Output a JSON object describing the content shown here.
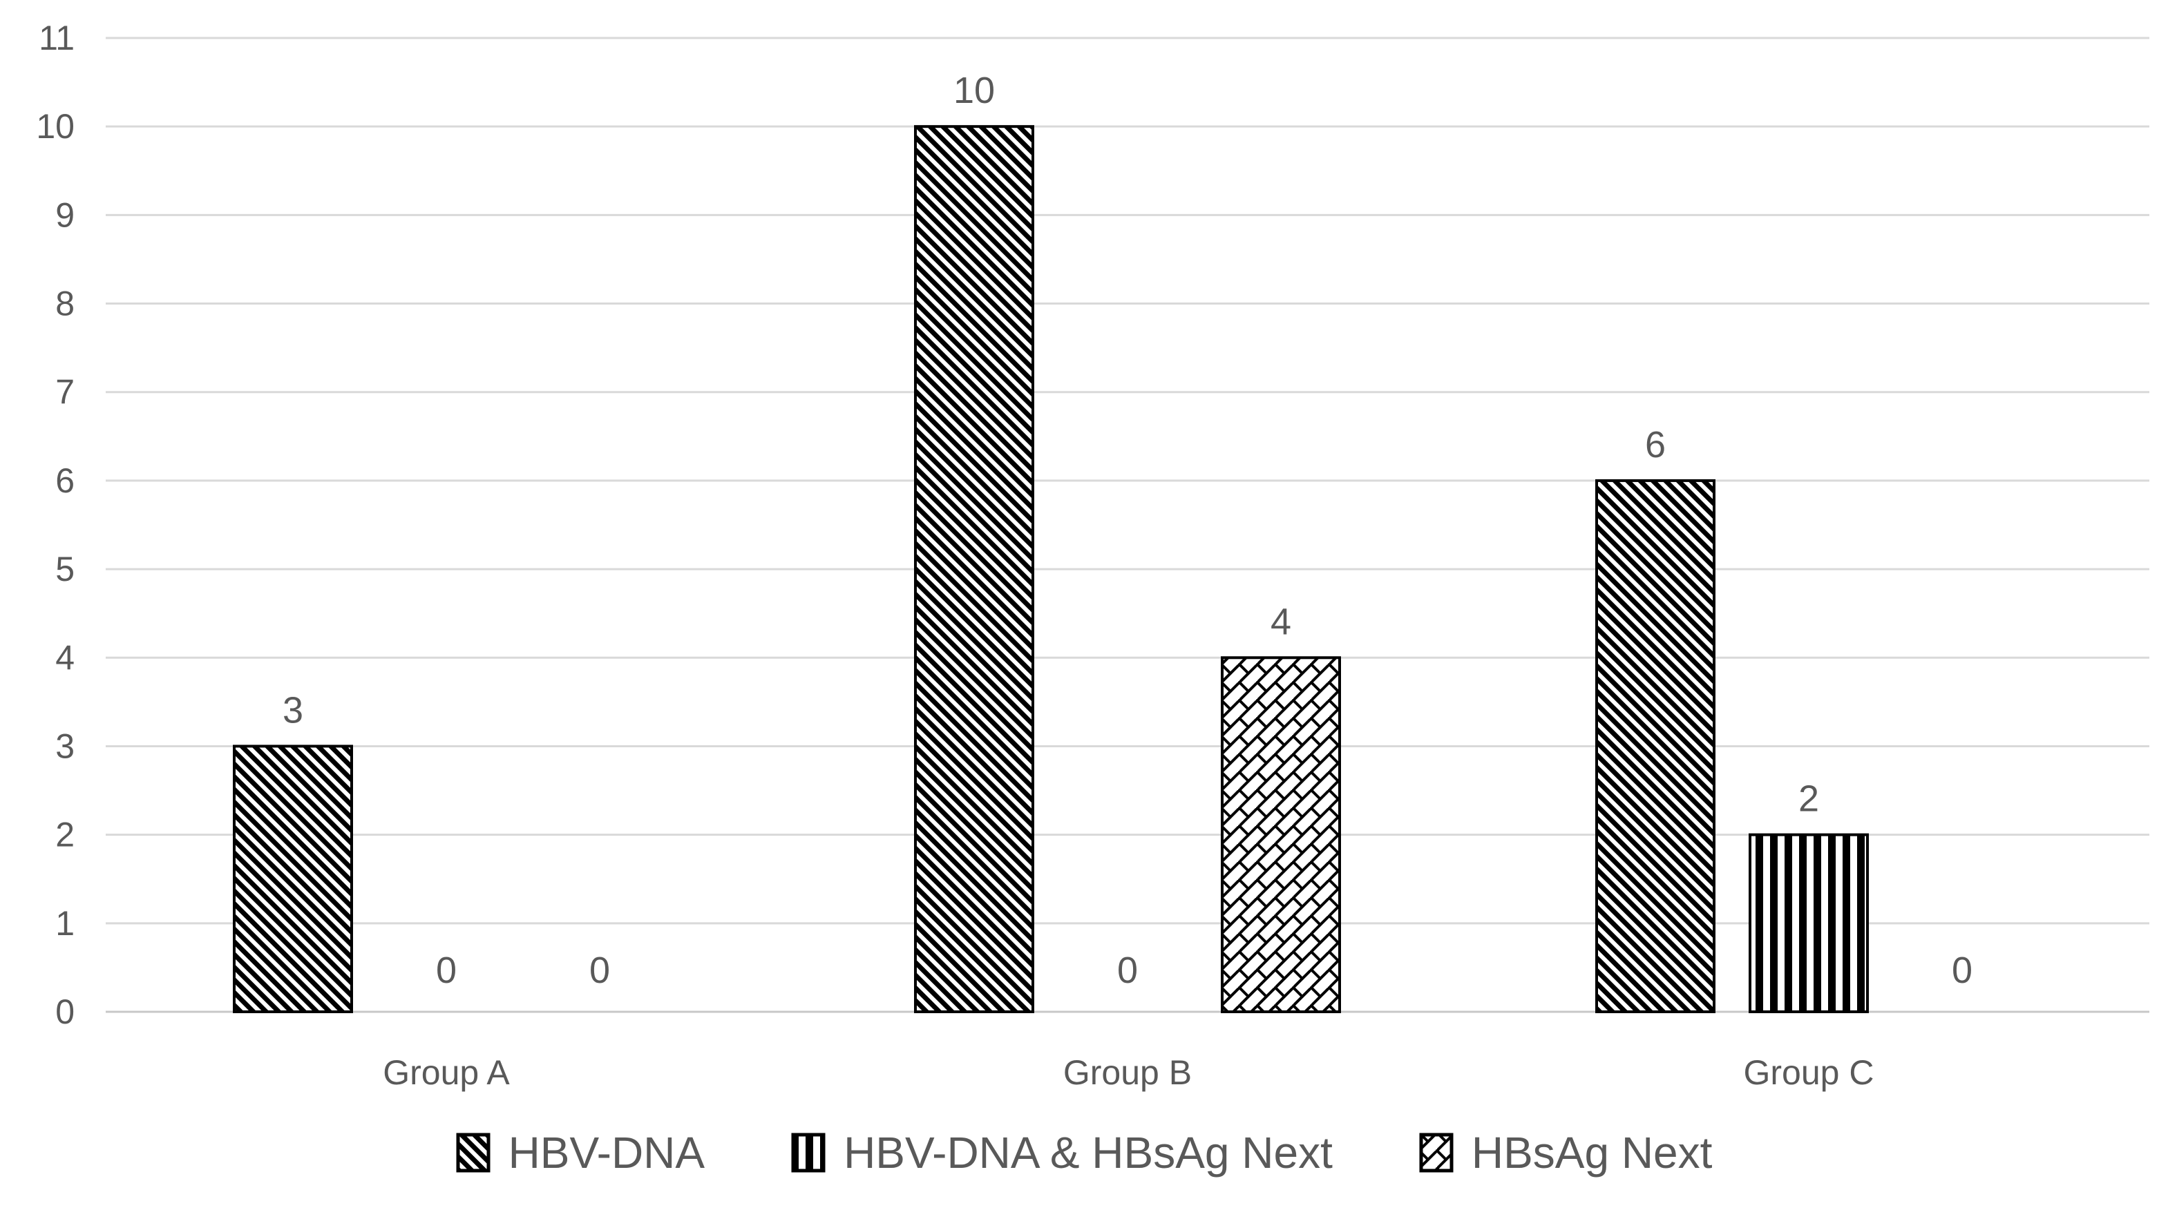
{
  "chart_data": {
    "type": "bar",
    "categories": [
      "Group A",
      "Group B",
      "Group C"
    ],
    "series": [
      {
        "name": "HBV-DNA",
        "pattern": "wide-downward-diagonal",
        "values": [
          3,
          10,
          6
        ]
      },
      {
        "name": "HBV-DNA & HBsAg Next",
        "pattern": "vertical-stripes",
        "values": [
          0,
          0,
          2
        ]
      },
      {
        "name": "HBsAg Next",
        "pattern": "diagonal-brick",
        "values": [
          0,
          4,
          0
        ]
      }
    ],
    "title": "",
    "xlabel": "",
    "ylabel": "",
    "ylim": [
      0,
      11
    ],
    "yticks": [
      0,
      1,
      2,
      3,
      4,
      5,
      6,
      7,
      8,
      9,
      10,
      11
    ],
    "grid": true,
    "data_labels": true,
    "legend_position": "bottom"
  },
  "style": {
    "background": "#ffffff",
    "text_color": "#595959",
    "gridline_color": "#d9d9d9",
    "axis_line_color": "#c8c8c8",
    "bar_fill_foreground": "#000000",
    "bar_fill_background": "#ffffff",
    "bar_outline_color": "#000000"
  }
}
